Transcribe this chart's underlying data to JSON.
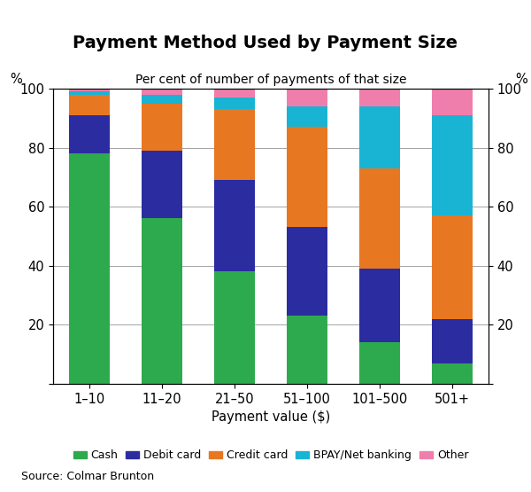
{
  "title": "Payment Method Used by Payment Size",
  "subtitle": "Per cent of number of payments of that size",
  "xlabel": "Payment value ($)",
  "source": "Source: Colmar Brunton",
  "categories": [
    "1–10",
    "11–20",
    "21–50",
    "51–100",
    "101–500",
    "501+"
  ],
  "series": {
    "Cash": [
      78,
      56,
      38,
      23,
      14,
      7
    ],
    "Debit card": [
      13,
      23,
      31,
      30,
      25,
      15
    ],
    "Credit card": [
      7,
      16,
      24,
      34,
      34,
      35
    ],
    "BPAY/Net banking": [
      1,
      3,
      4,
      7,
      21,
      34
    ],
    "Other": [
      1,
      2,
      3,
      6,
      6,
      9
    ]
  },
  "colors": {
    "Cash": "#2eaa4e",
    "Debit card": "#2b2ca0",
    "Credit card": "#e87722",
    "BPAY/Net banking": "#19b4d4",
    "Other": "#f07ead"
  },
  "ylim": [
    0,
    100
  ],
  "yticks": [
    0,
    20,
    40,
    60,
    80,
    100
  ],
  "bar_width": 0.55,
  "figsize": [
    6.0,
    5.55
  ],
  "dpi": 100
}
